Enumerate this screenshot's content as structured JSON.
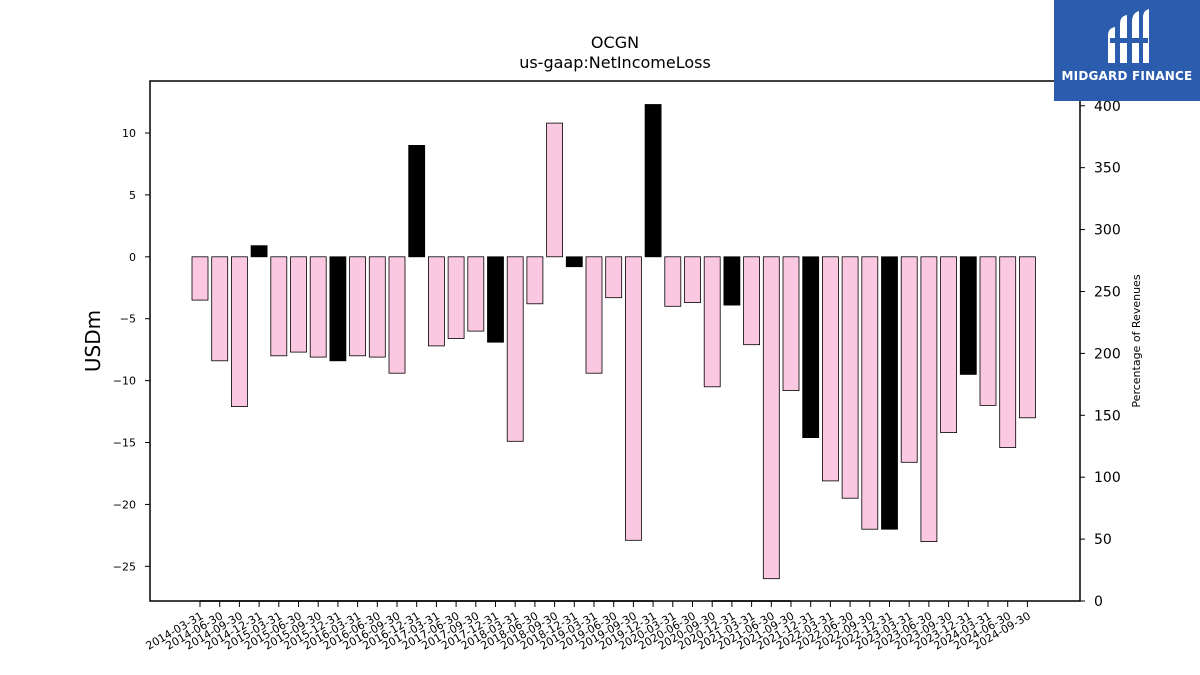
{
  "logo": {
    "text": "MIDGARD FINANCE",
    "icon": "midgard-logo-icon",
    "color": "#2b5cad"
  },
  "chart_data": {
    "type": "bar",
    "title": "OCGN",
    "subtitle": "us-gaap:NetIncomeLoss",
    "ylabel": "USDm",
    "y2label": "Percentage of Revenues",
    "ylim": [
      -27.8,
      14.2
    ],
    "y2lim": [
      0,
      420
    ],
    "yticks": [
      10,
      5,
      0,
      -5,
      -10,
      -15,
      -20,
      -25
    ],
    "y2ticks": [
      0,
      50,
      100,
      150,
      200,
      250,
      300,
      350,
      400
    ],
    "grid": false,
    "colors": {
      "quarter": "#fbc8e1",
      "annual": "#000000",
      "edge": "#000000"
    },
    "categories": [
      "2014-03-31",
      "2014-06-30",
      "2014-09-30",
      "2014-12-31",
      "2015-03-31",
      "2015-06-30",
      "2015-09-30",
      "2015-12-31",
      "2016-03-31",
      "2016-06-30",
      "2016-09-30",
      "2016-12-31",
      "2017-03-31",
      "2017-06-30",
      "2017-09-30",
      "2017-12-31",
      "2018-03-31",
      "2018-06-30",
      "2018-09-30",
      "2018-12-31",
      "2019-03-31",
      "2019-06-30",
      "2019-09-30",
      "2019-12-31",
      "2020-03-31",
      "2020-06-30",
      "2020-09-30",
      "2020-12-31",
      "2021-03-31",
      "2021-06-30",
      "2021-09-30",
      "2021-12-31",
      "2022-03-31",
      "2022-06-30",
      "2022-09-30",
      "2022-12-31",
      "2023-03-31",
      "2023-06-30",
      "2023-09-30",
      "2023-12-31",
      "2024-03-31",
      "2024-06-30",
      "2024-09-30"
    ],
    "values": [
      -3.5,
      -8.4,
      -12.1,
      0.9,
      -8.0,
      -7.7,
      -8.1,
      -8.4,
      -8.0,
      -8.1,
      -9.4,
      9.0,
      -7.2,
      -6.6,
      -6.0,
      -6.9,
      -14.9,
      -3.8,
      10.8,
      -0.8,
      -9.4,
      -3.3,
      -22.9,
      12.3,
      -4.0,
      -3.7,
      -10.5,
      -3.9,
      -7.1,
      -26.0,
      -10.8,
      -14.6,
      -18.1,
      -19.5,
      -22.0,
      -22.0,
      -16.6,
      -23.0,
      -14.2,
      -9.5,
      -12.0,
      -15.4,
      -13.0
    ],
    "annual": [
      false,
      false,
      false,
      true,
      false,
      false,
      false,
      true,
      false,
      false,
      false,
      true,
      false,
      false,
      false,
      true,
      false,
      false,
      false,
      true,
      false,
      false,
      false,
      true,
      false,
      false,
      false,
      true,
      false,
      false,
      false,
      true,
      false,
      false,
      false,
      true,
      false,
      false,
      false,
      true,
      false,
      false,
      false
    ],
    "percent_of_revenue": [
      0,
      0,
      0,
      0,
      0,
      0,
      0,
      0,
      0,
      0,
      0,
      0,
      0,
      0,
      0,
      0,
      0,
      0,
      0,
      0,
      0,
      0,
      0,
      0,
      null,
      null,
      0,
      0,
      0,
      0,
      0,
      null,
      null,
      null,
      null,
      null,
      null,
      null,
      null,
      null,
      null,
      null,
      null
    ]
  }
}
